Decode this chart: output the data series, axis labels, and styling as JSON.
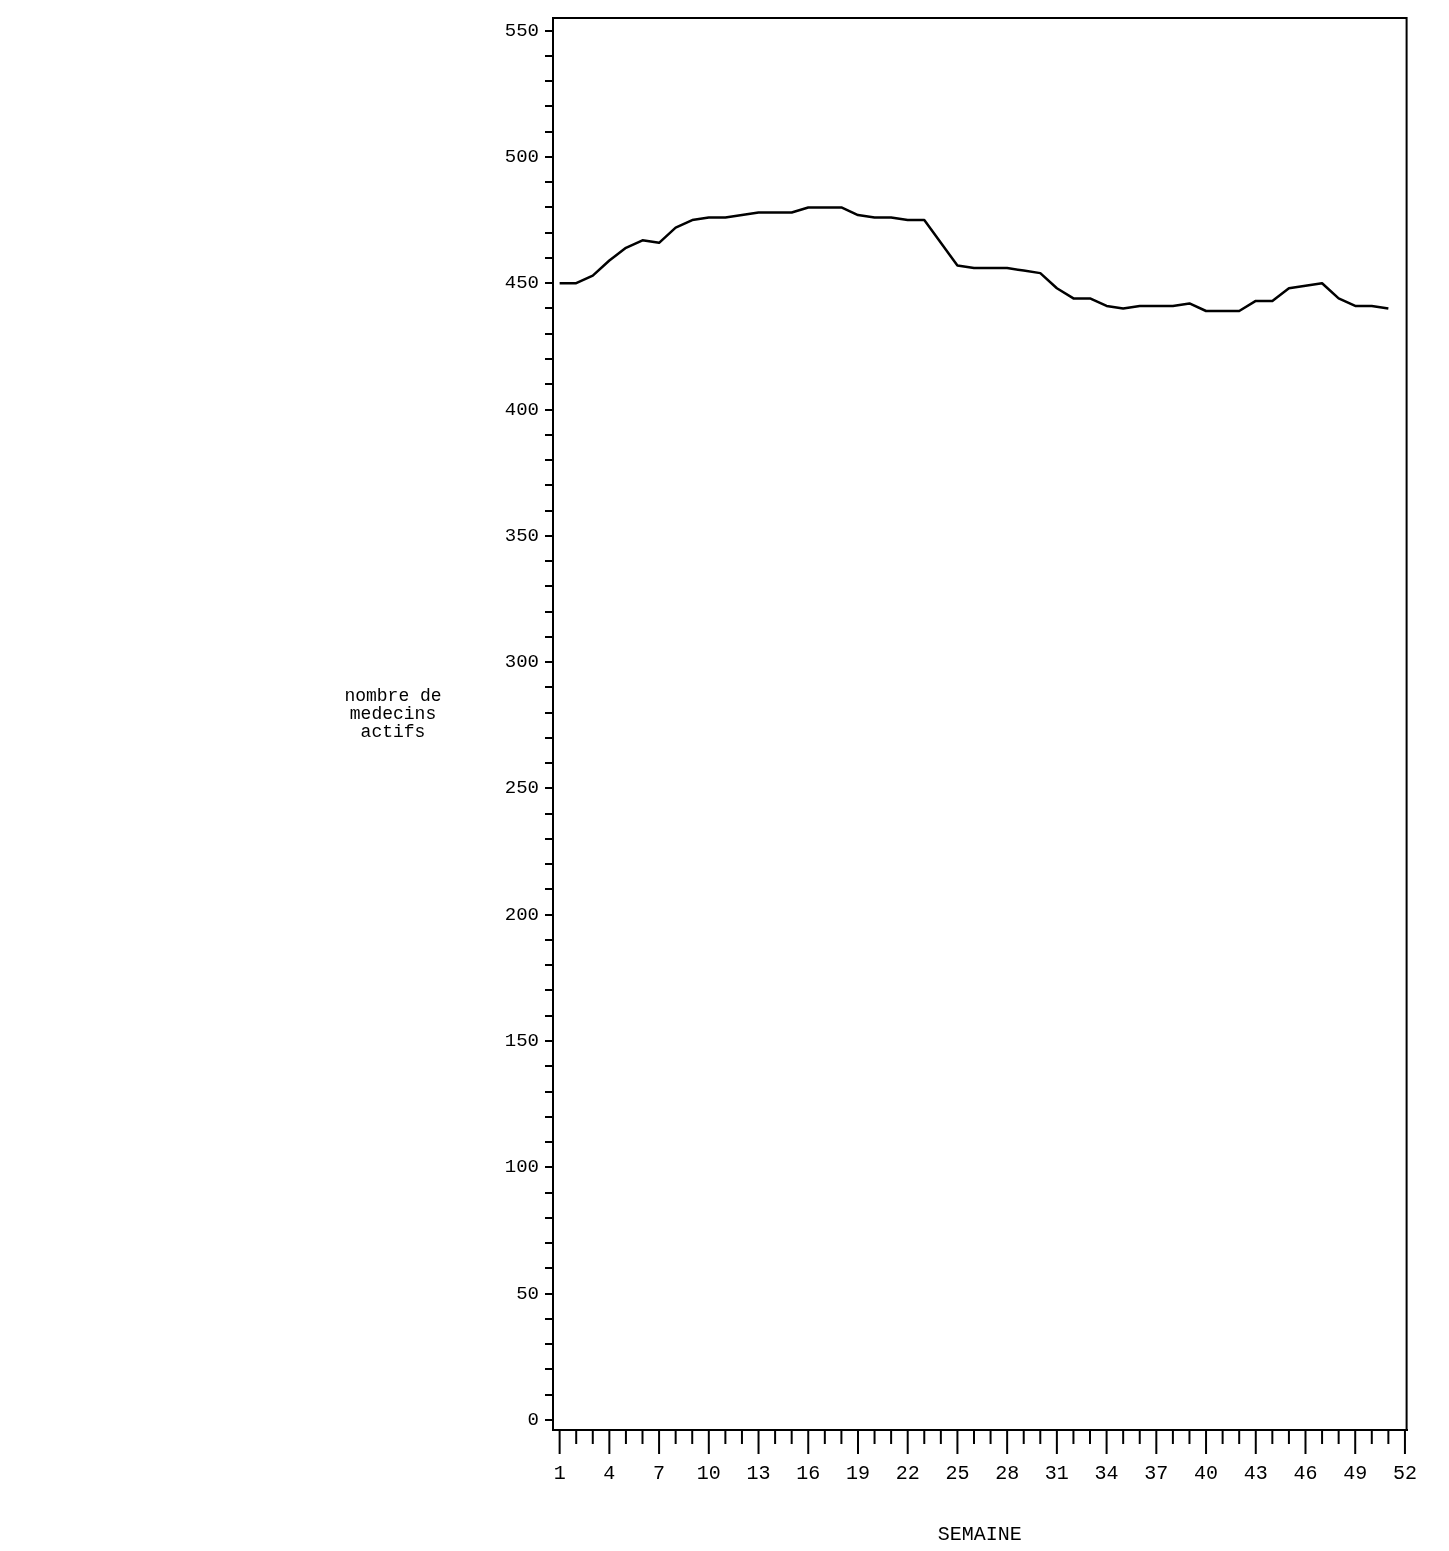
{
  "chart_data": {
    "type": "line",
    "xlabel": "SEMAINE",
    "ylabel": "nombre de medecins actifs",
    "x": [
      1,
      2,
      3,
      4,
      5,
      6,
      7,
      8,
      9,
      10,
      11,
      12,
      13,
      14,
      15,
      16,
      17,
      18,
      19,
      20,
      21,
      22,
      23,
      24,
      25,
      26,
      27,
      28,
      29,
      30,
      31,
      32,
      33,
      34,
      35,
      36,
      37,
      38,
      39,
      40,
      41,
      42,
      43,
      44,
      45,
      46,
      47,
      48,
      49,
      50,
      51
    ],
    "series": [
      {
        "color": "#000000",
        "values": [
          450,
          450,
          453,
          459,
          464,
          467,
          466,
          472,
          475,
          476,
          476,
          477,
          478,
          478,
          478,
          480,
          480,
          480,
          477,
          476,
          476,
          475,
          475,
          466,
          457,
          456,
          456,
          456,
          455,
          454,
          448,
          444,
          444,
          441,
          440,
          441,
          441,
          441,
          442,
          439,
          439,
          439,
          443,
          443,
          448,
          449,
          450,
          444,
          441,
          441,
          440
        ]
      }
    ],
    "xlim": [
      0.6,
      52.1
    ],
    "xticks": [
      1,
      {
        "value": 2,
        "label": null
      },
      {
        "value": 3,
        "label": null
      },
      4,
      {
        "value": 5,
        "label": null
      },
      {
        "value": 6,
        "label": null
      },
      7,
      {
        "value": 8,
        "label": null
      },
      {
        "value": 9,
        "label": null
      },
      10,
      {
        "value": 11,
        "label": null
      },
      {
        "value": 12,
        "label": null
      },
      13,
      {
        "value": 14,
        "label": null
      },
      {
        "value": 15,
        "label": null
      },
      16,
      {
        "value": 17,
        "label": null
      },
      {
        "value": 18,
        "label": null
      },
      19,
      {
        "value": 20,
        "label": null
      },
      {
        "value": 21,
        "label": null
      },
      22,
      {
        "value": 23,
        "label": null
      },
      {
        "value": 24,
        "label": null
      },
      25,
      {
        "value": 26,
        "label": null
      },
      {
        "value": 27,
        "label": null
      },
      28,
      {
        "value": 29,
        "label": null
      },
      {
        "value": 30,
        "label": null
      },
      31,
      {
        "value": 32,
        "label": null
      },
      {
        "value": 33,
        "label": null
      },
      34,
      {
        "value": 35,
        "label": null
      },
      {
        "value": 36,
        "label": null
      },
      37,
      {
        "value": 38,
        "label": null
      },
      {
        "value": 39,
        "label": null
      },
      40,
      {
        "value": 41,
        "label": null
      },
      {
        "value": 42,
        "label": null
      },
      43,
      {
        "value": 44,
        "label": null
      },
      {
        "value": 45,
        "label": null
      },
      46,
      {
        "value": 47,
        "label": null
      },
      {
        "value": 48,
        "label": null
      },
      49,
      {
        "value": 50,
        "label": null
      },
      {
        "value": 51,
        "label": null
      },
      52
    ],
    "ylim": [
      -4,
      555
    ],
    "yticks": [
      0,
      {
        "value": 10,
        "label": null
      },
      {
        "value": 20,
        "label": null
      },
      {
        "value": 30,
        "label": null
      },
      {
        "value": 40,
        "label": null
      },
      50,
      {
        "value": 60,
        "label": null
      },
      {
        "value": 70,
        "label": null
      },
      {
        "value": 80,
        "label": null
      },
      {
        "value": 90,
        "label": null
      },
      100,
      {
        "value": 110,
        "label": null
      },
      {
        "value": 120,
        "label": null
      },
      {
        "value": 130,
        "label": null
      },
      {
        "value": 140,
        "label": null
      },
      150,
      {
        "value": 160,
        "label": null
      },
      {
        "value": 170,
        "label": null
      },
      {
        "value": 180,
        "label": null
      },
      {
        "value": 190,
        "label": null
      },
      200,
      {
        "value": 210,
        "label": null
      },
      {
        "value": 220,
        "label": null
      },
      {
        "value": 230,
        "label": null
      },
      {
        "value": 240,
        "label": null
      },
      250,
      {
        "value": 260,
        "label": null
      },
      {
        "value": 270,
        "label": null
      },
      {
        "value": 280,
        "label": null
      },
      {
        "value": 290,
        "label": null
      },
      300,
      {
        "value": 310,
        "label": null
      },
      {
        "value": 320,
        "label": null
      },
      {
        "value": 330,
        "label": null
      },
      {
        "value": 340,
        "label": null
      },
      350,
      {
        "value": 360,
        "label": null
      },
      {
        "value": 370,
        "label": null
      },
      {
        "value": 380,
        "label": null
      },
      {
        "value": 390,
        "label": null
      },
      400,
      {
        "value": 410,
        "label": null
      },
      {
        "value": 420,
        "label": null
      },
      {
        "value": 430,
        "label": null
      },
      {
        "value": 440,
        "label": null
      },
      450,
      {
        "value": 460,
        "label": null
      },
      {
        "value": 470,
        "label": null
      },
      {
        "value": 480,
        "label": null
      },
      {
        "value": 490,
        "label": null
      },
      500,
      {
        "value": 510,
        "label": null
      },
      {
        "value": 520,
        "label": null
      },
      {
        "value": 530,
        "label": null
      },
      {
        "value": 540,
        "label": null
      },
      550
    ],
    "grid": false,
    "legend": false,
    "marker": "none",
    "line_style": "solid"
  }
}
